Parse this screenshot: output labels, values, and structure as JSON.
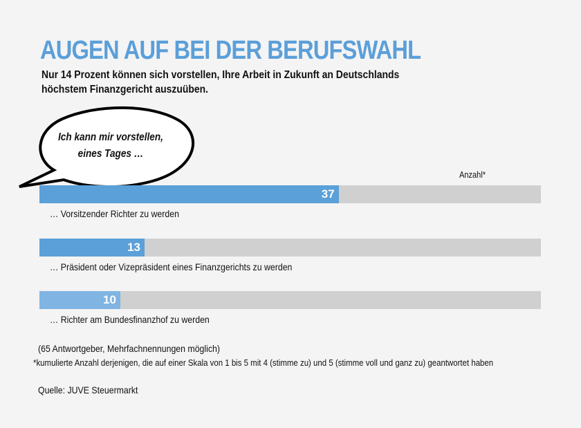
{
  "title": "AUGEN AUF BEI DER BERUFSWAHL",
  "subtitle": "Nur 14 Prozent können sich vorstellen, Ihre Arbeit in Zukunft an Deutschlands höchstem Finanzgericht auszuüben.",
  "bubble": {
    "line1": "Ich kann mir vorstellen,",
    "line2": "eines Tages …"
  },
  "colors": {
    "title": "#5b9fd9",
    "bar": "#5ba0d8",
    "bar_light": "#80b4e2",
    "track": "#d0d0d0"
  },
  "chart_data": {
    "type": "bar",
    "orientation": "horizontal",
    "value_label": "Anzahl*",
    "categories": [
      "… Vorsitzender Richter zu werden",
      "… Präsident oder Vizepräsident eines Finanzgerichts zu werden",
      "… Richter am Bundesfinanzhof zu werden"
    ],
    "values": [
      37,
      13,
      10
    ],
    "xlim": [
      0,
      62
    ]
  },
  "notes": {
    "respondents": "(65 Antwortgeber, Mehrfachnennungen möglich)",
    "footnote": "*kumulierte Anzahl derjenigen, die auf einer Skala von 1 bis 5 mit 4 (stimme zu) und 5 (stimme voll und ganz zu) geantwortet haben",
    "source": "Quelle: JUVE Steuermarkt"
  }
}
